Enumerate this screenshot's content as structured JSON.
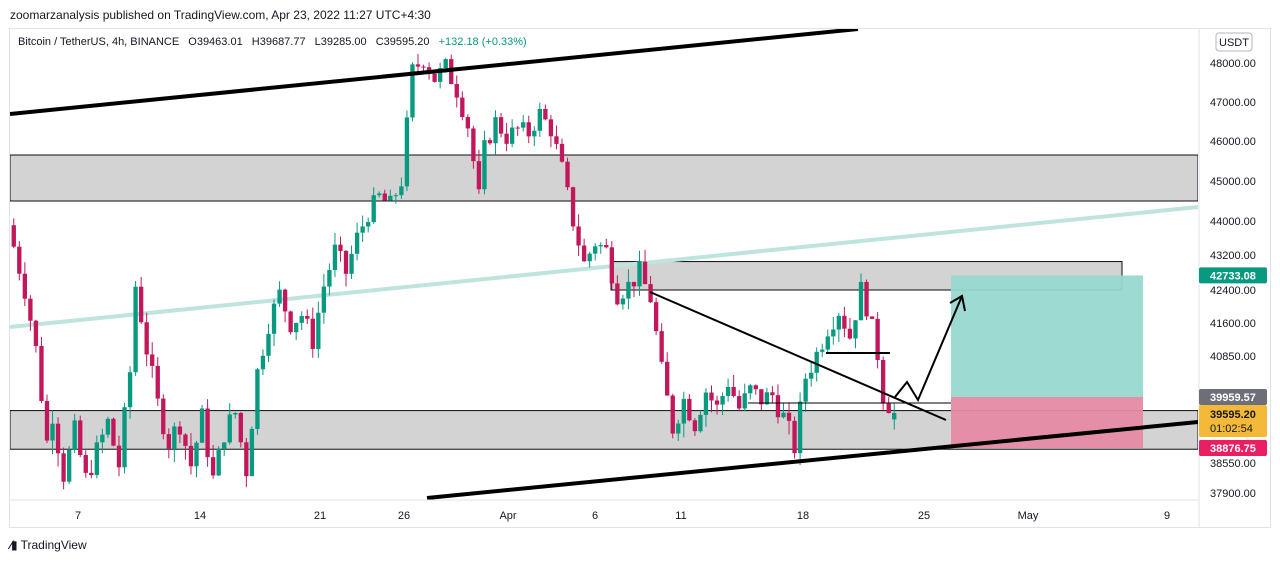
{
  "header": {
    "publisher_line": "zoomarzanalysis published on TradingView.com, Apr 23, 2022 11:27 UTC+4:30"
  },
  "legend": {
    "symbol": "Bitcoin / TetherUS, 4h, BINANCE",
    "open": "O39463.01",
    "high": "H39687.77",
    "low": "L39285.00",
    "close": "C39595.20",
    "change": "+132.18 (+0.33%)"
  },
  "price_axis": {
    "currency": "USDT",
    "ticks": [
      "48000.00",
      "47000.00",
      "46000.00",
      "45000.00",
      "44000.00",
      "43200.00",
      "42400.00",
      "41600.00",
      "40850.00",
      "38550.00",
      "37900.00"
    ],
    "tags": {
      "target": "42733.08",
      "entry_upper": "39959.57",
      "last_price": "39595.20",
      "countdown": "01:02:54",
      "stop": "38876.75"
    }
  },
  "time_axis": {
    "ticks": [
      "7",
      "14",
      "21",
      "26",
      "Apr",
      "6",
      "11",
      "18",
      "25",
      "May",
      "9"
    ]
  },
  "footer": {
    "brand": "TradingView"
  },
  "colors": {
    "up": "#089981",
    "down": "#c2185b",
    "zone_fill": "#d1d1d1",
    "trendline": "#000000",
    "teal_line": "#bfe3dd",
    "target_box": "#98d8cf",
    "stop_box": "#e68aa4",
    "tag_target": "#089981",
    "tag_stop": "#e91e63",
    "tag_last": "#f5b93a",
    "tag_entry": "#6c6f77"
  },
  "chart_data": {
    "type": "candlestick",
    "symbol": "BTCUSDT",
    "interval": "4h",
    "ylim": [
      37700,
      48600
    ],
    "x_tick_labels": [
      "7",
      "14",
      "21",
      "26",
      "Apr",
      "6",
      "11",
      "18",
      "25",
      "May",
      "9"
    ],
    "y_tick_labels": [
      "48000.00",
      "47000.00",
      "46000.00",
      "45000.00",
      "44000.00",
      "43200.00",
      "42400.00",
      "41600.00",
      "40850.00",
      "38550.00",
      "37900.00"
    ],
    "ohlc_last": {
      "open": 39463.01,
      "high": 39687.77,
      "low": 39285.0,
      "close": 39595.2
    },
    "price_path": [
      [
        0,
        43900
      ],
      [
        3,
        42400
      ],
      [
        5,
        41000
      ],
      [
        7,
        39000
      ],
      [
        8,
        39600
      ],
      [
        10,
        38300
      ],
      [
        12,
        39200
      ],
      [
        14,
        38200
      ],
      [
        16,
        38800
      ],
      [
        18,
        39400
      ],
      [
        20,
        38500
      ],
      [
        22,
        40500
      ],
      [
        23,
        42500
      ],
      [
        25,
        41000
      ],
      [
        27,
        39800
      ],
      [
        29,
        39000
      ],
      [
        31,
        39400
      ],
      [
        33,
        38500
      ],
      [
        35,
        39500
      ],
      [
        37,
        38200
      ],
      [
        39,
        39200
      ],
      [
        41,
        39600
      ],
      [
        43,
        38400
      ],
      [
        45,
        40500
      ],
      [
        47,
        41600
      ],
      [
        49,
        42300
      ],
      [
        51,
        41600
      ],
      [
        53,
        41800
      ],
      [
        55,
        41200
      ],
      [
        57,
        42500
      ],
      [
        59,
        43300
      ],
      [
        61,
        42800
      ],
      [
        63,
        43600
      ],
      [
        65,
        44200
      ],
      [
        67,
        44600
      ],
      [
        69,
        44400
      ],
      [
        71,
        45000
      ],
      [
        73,
        47800
      ],
      [
        75,
        48100
      ],
      [
        77,
        47600
      ],
      [
        79,
        47900
      ],
      [
        81,
        47300
      ],
      [
        83,
        46400
      ],
      [
        85,
        44600
      ],
      [
        86,
        45800
      ],
      [
        88,
        46500
      ],
      [
        90,
        46100
      ],
      [
        92,
        46300
      ],
      [
        94,
        46200
      ],
      [
        96,
        46700
      ],
      [
        98,
        46300
      ],
      [
        100,
        45300
      ],
      [
        102,
        44000
      ],
      [
        104,
        43000
      ],
      [
        106,
        43500
      ],
      [
        108,
        43300
      ],
      [
        110,
        42300
      ],
      [
        112,
        42500
      ],
      [
        114,
        42800
      ],
      [
        116,
        42200
      ],
      [
        118,
        40500
      ],
      [
        120,
        39300
      ],
      [
        122,
        39900
      ],
      [
        124,
        39400
      ],
      [
        126,
        40100
      ],
      [
        128,
        39700
      ],
      [
        130,
        40300
      ],
      [
        132,
        39700
      ],
      [
        134,
        40100
      ],
      [
        136,
        39900
      ],
      [
        138,
        40000
      ],
      [
        140,
        39500
      ],
      [
        142,
        38900
      ],
      [
        144,
        40400
      ],
      [
        146,
        40900
      ],
      [
        148,
        41500
      ],
      [
        150,
        41900
      ],
      [
        152,
        41300
      ],
      [
        154,
        42400
      ],
      [
        155,
        42000
      ],
      [
        157,
        40900
      ],
      [
        158,
        40000
      ],
      [
        160,
        39595
      ]
    ],
    "annotations": [
      {
        "type": "zone",
        "label": "resistance zone",
        "y": [
          44500,
          45650
        ]
      },
      {
        "type": "zone",
        "label": "support zone",
        "y": [
          38850,
          39650
        ]
      },
      {
        "type": "zone",
        "label": "mid zone",
        "y": [
          42400,
          43050
        ]
      },
      {
        "type": "long_position",
        "entry": 39959.57,
        "target": 42733.08,
        "stop": 38876.75
      }
    ]
  }
}
